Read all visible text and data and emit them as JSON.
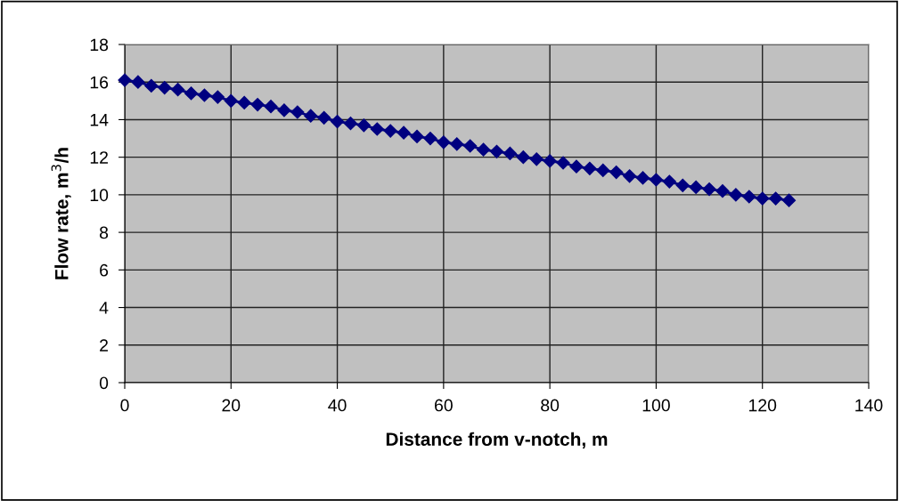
{
  "chart_data": {
    "type": "line",
    "xlabel": "Distance from v-notch, m",
    "ylabel": "Flow rate, m$^{3}$/h",
    "x": [
      0,
      2.5,
      5,
      7.5,
      10,
      12.5,
      15,
      17.5,
      20,
      22.5,
      25,
      27.5,
      30,
      32.5,
      35,
      37.5,
      40,
      42.5,
      45,
      47.5,
      50,
      52.5,
      55,
      57.5,
      60,
      62.5,
      65,
      67.5,
      70,
      72.5,
      75,
      77.5,
      80,
      82.5,
      85,
      87.5,
      90,
      92.5,
      95,
      97.5,
      100,
      102.5,
      105,
      107.5,
      110,
      112.5,
      115,
      117.5,
      120,
      122.5,
      125
    ],
    "series": [
      {
        "color": "#000080",
        "values": [
          16.1,
          16.0,
          15.8,
          15.7,
          15.6,
          15.4,
          15.3,
          15.2,
          15.0,
          14.9,
          14.8,
          14.7,
          14.5,
          14.4,
          14.2,
          14.1,
          13.9,
          13.8,
          13.7,
          13.5,
          13.4,
          13.3,
          13.1,
          13.0,
          12.8,
          12.7,
          12.6,
          12.4,
          12.3,
          12.2,
          12.0,
          11.9,
          11.8,
          11.7,
          11.5,
          11.4,
          11.3,
          11.2,
          11.0,
          10.9,
          10.8,
          10.7,
          10.5,
          10.4,
          10.3,
          10.2,
          10.0,
          9.9,
          9.8,
          9.8,
          9.7
        ]
      }
    ],
    "xlim": [
      0,
      140
    ],
    "ylim": [
      0,
      18
    ],
    "xticks": [
      0,
      20,
      40,
      60,
      80,
      100,
      120,
      140
    ],
    "yticks": [
      0,
      2,
      4,
      6,
      8,
      10,
      12,
      14,
      16,
      18
    ],
    "grid": true,
    "marker": "diamond",
    "line_style": "solid",
    "legend": false
  }
}
